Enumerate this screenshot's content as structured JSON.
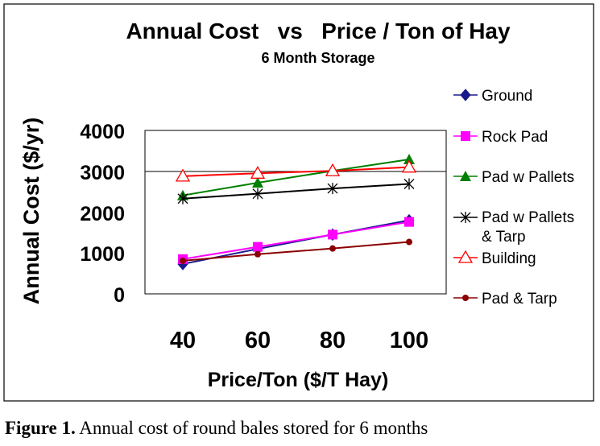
{
  "chart_data": {
    "type": "line",
    "title": "Annual Cost   vs   Price / Ton of Hay",
    "subtitle": "6 Month Storage",
    "xlabel": "Price/Ton ($/T Hay)",
    "ylabel": "Annual Cost ($/yr)",
    "x": [
      40,
      60,
      80,
      100
    ],
    "x_tick_labels": [
      "40",
      "60",
      "80",
      "100"
    ],
    "y_tick_labels": [
      "0",
      "1000",
      "2000",
      "3000",
      "4000"
    ],
    "ylim": [
      0,
      4000
    ],
    "grid": "horizontal line at 3000 only",
    "legend_position": "right",
    "series": [
      {
        "name": "Ground",
        "values": [
          730,
          1100,
          1450,
          1800
        ],
        "color": "#1a1a8c",
        "marker": "diamond"
      },
      {
        "name": "Rock Pad",
        "values": [
          850,
          1150,
          1450,
          1760
        ],
        "color": "#ff00ff",
        "marker": "square"
      },
      {
        "name": "Pad w Pallets",
        "values": [
          2410,
          2720,
          3010,
          3290
        ],
        "color": "#008000",
        "marker": "triangle"
      },
      {
        "name": "Pad w Pallets & Tarp",
        "values": [
          2330,
          2450,
          2580,
          2690
        ],
        "color": "#000000",
        "marker": "asterisk"
      },
      {
        "name": "Building",
        "values": [
          2880,
          2950,
          3010,
          3100
        ],
        "color": "#ff0000",
        "marker": "open-triangle"
      },
      {
        "name": "Pad & Tarp",
        "values": [
          810,
          970,
          1110,
          1270
        ],
        "color": "#8b0000",
        "marker": "circle"
      }
    ]
  },
  "caption": {
    "label": "Figure 1.",
    "text": "Annual cost of round bales stored for 6 months"
  },
  "legend_labels": {
    "s0": "Ground",
    "s1": "Rock Pad",
    "s2": "Pad w Pallets",
    "s3_line1": "Pad w Pallets",
    "s3_line2": "& Tarp",
    "s4": "Building",
    "s5": "Pad & Tarp"
  }
}
